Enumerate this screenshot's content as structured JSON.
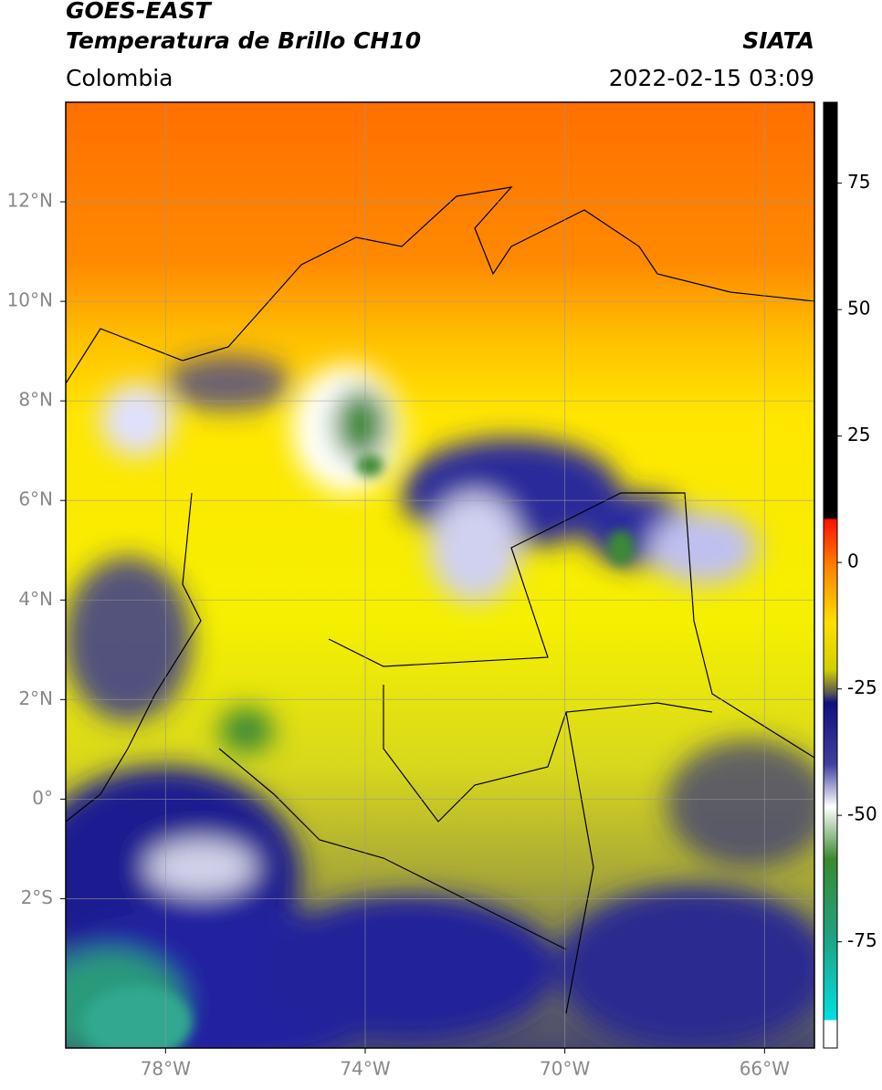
{
  "header": {
    "title": "GOES-EAST",
    "subtitle": "Temperatura de Brillo CH10",
    "region": "Colombia",
    "source": "SIATA",
    "datetime": "2022-02-15 03:09"
  },
  "map": {
    "xlim": [
      -80,
      -65
    ],
    "ylim": [
      -5,
      14
    ],
    "xticks": [
      {
        "value": -78,
        "label": "78°W"
      },
      {
        "value": -74,
        "label": "74°W"
      },
      {
        "value": -70,
        "label": "70°W"
      },
      {
        "value": -66,
        "label": "66°W"
      }
    ],
    "yticks": [
      {
        "value": 12,
        "label": "12°N"
      },
      {
        "value": 10,
        "label": "10°N"
      },
      {
        "value": 8,
        "label": "8°N"
      },
      {
        "value": 6,
        "label": "6°N"
      },
      {
        "value": 4,
        "label": "4°N"
      },
      {
        "value": 2,
        "label": "2°N"
      },
      {
        "value": 0,
        "label": "0°"
      },
      {
        "value": -2,
        "label": "2°S"
      }
    ],
    "grid": true
  },
  "colorbar": {
    "lim": [
      -96,
      91
    ],
    "ticks": [
      75,
      50,
      25,
      0,
      -25,
      -50,
      -75
    ]
  }
}
